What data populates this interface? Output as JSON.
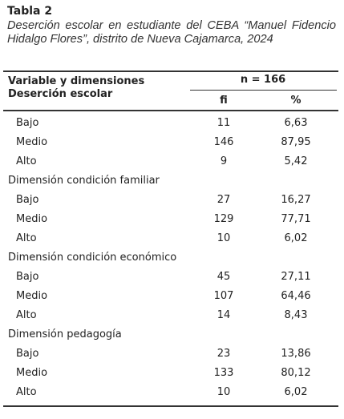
{
  "header": {
    "title": "Tabla 2",
    "caption": "Deserción escolar en estudiante del CEBA “Manuel Fidencio Hidalgo Flores”, distrito de Nueva Cajamarca, 2024"
  },
  "table": {
    "columns": {
      "variable": "Variable y dimensiones",
      "n": "n = 166",
      "fi": "fi",
      "pct": "%"
    },
    "groups": [
      {
        "title": "Deserción escolar",
        "rows": [
          [
            "Bajo",
            "11",
            "6,63"
          ],
          [
            "Medio",
            "146",
            "87,95"
          ],
          [
            "Alto",
            "9",
            "5,42"
          ]
        ]
      },
      {
        "title": "Dimensión condición familiar",
        "rows": [
          [
            "Bajo",
            "27",
            "16,27"
          ],
          [
            "Medio",
            "129",
            "77,71"
          ],
          [
            "Alto",
            "10",
            "6,02"
          ]
        ]
      },
      {
        "title": "Dimensión condición económico",
        "rows": [
          [
            "Bajo",
            "45",
            "27,11"
          ],
          [
            "Medio",
            "107",
            "64,46"
          ],
          [
            "Alto",
            "14",
            "8,43"
          ]
        ]
      },
      {
        "title": "Dimensión pedagogía",
        "rows": [
          [
            "Bajo",
            "23",
            "13,86"
          ],
          [
            "Medio",
            "133",
            "80,12"
          ],
          [
            "Alto",
            "10",
            "6,02"
          ]
        ]
      }
    ]
  }
}
